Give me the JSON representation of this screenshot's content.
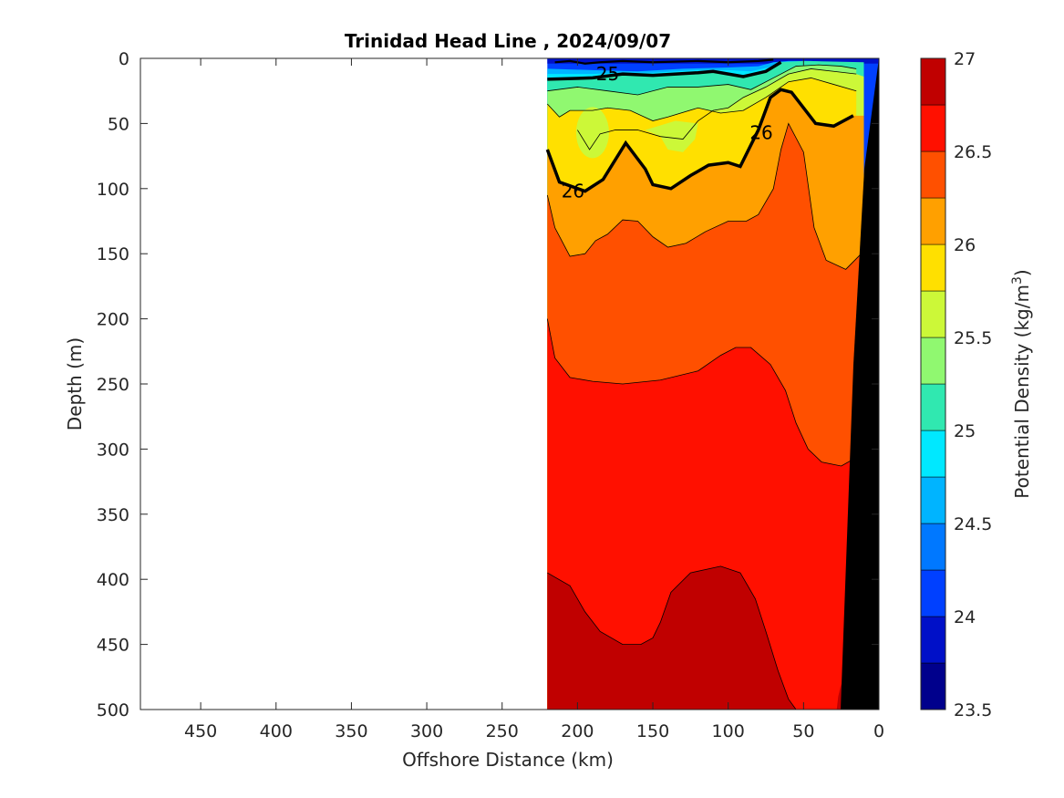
{
  "chart_data": {
    "type": "contour",
    "title": "Trinidad Head Line , 2024/09/07",
    "xlabel": "Offshore Distance (km)",
    "ylabel": "Depth (m)",
    "xlim": [
      490,
      0
    ],
    "ylim": [
      500,
      0
    ],
    "x_reversed": true,
    "y_reversed": true,
    "xticks": [
      "450",
      "400",
      "350",
      "300",
      "250",
      "200",
      "150",
      "100",
      "50",
      "0"
    ],
    "xtick_values": [
      450,
      400,
      350,
      300,
      250,
      200,
      150,
      100,
      50,
      0
    ],
    "yticks": [
      "0",
      "50",
      "100",
      "150",
      "200",
      "250",
      "300",
      "350",
      "400",
      "450",
      "500"
    ],
    "ytick_values": [
      0,
      50,
      100,
      150,
      200,
      250,
      300,
      350,
      400,
      450,
      500
    ],
    "colorbar": {
      "label_main": "Potential Density (kg/m",
      "label_sup": "3",
      "label_end": ")",
      "ticks": [
        "27",
        "26.5",
        "26",
        "25.5",
        "25",
        "24.5",
        "24",
        "23.5"
      ],
      "tick_values": [
        27,
        26.5,
        26,
        25.5,
        25,
        24.5,
        24,
        23.5
      ],
      "levels": [
        23.5,
        23.75,
        24,
        24.25,
        24.5,
        24.75,
        25,
        25.25,
        25.5,
        25.75,
        26,
        26.25,
        26.5,
        26.75,
        27
      ],
      "colors": [
        "#00008c",
        "#0010c8",
        "#0040ff",
        "#0078ff",
        "#00b4ff",
        "#00e8ff",
        "#30e8b0",
        "#90f870",
        "#ccf838",
        "#ffe000",
        "#ffa000",
        "#ff5000",
        "#ff1000",
        "#c00000"
      ]
    },
    "data_extent_km": [
      0,
      220
    ],
    "isopycnal_labels": [
      {
        "text": "25",
        "x_km": 180,
        "depth_m": 12
      },
      {
        "text": "26",
        "x_km": 78,
        "depth_m": 57
      },
      {
        "text": "26",
        "x_km": 203,
        "depth_m": 102
      }
    ],
    "isopycnal_26_depth_m": [
      [
        220,
        70
      ],
      [
        212,
        95
      ],
      [
        195,
        102
      ],
      [
        183,
        93
      ],
      [
        168,
        65
      ],
      [
        155,
        85
      ],
      [
        150,
        97
      ],
      [
        138,
        100
      ],
      [
        125,
        90
      ],
      [
        113,
        82
      ],
      [
        100,
        80
      ],
      [
        92,
        83
      ],
      [
        80,
        55
      ],
      [
        72,
        30
      ],
      [
        65,
        24
      ],
      [
        58,
        26
      ],
      [
        42,
        50
      ],
      [
        30,
        52
      ],
      [
        17,
        44
      ]
    ],
    "isopycnal_25_depth_m": [
      [
        220,
        16
      ],
      [
        190,
        15
      ],
      [
        170,
        12
      ],
      [
        150,
        13
      ],
      [
        120,
        11
      ],
      [
        110,
        10
      ],
      [
        90,
        14
      ],
      [
        75,
        10
      ],
      [
        65,
        3
      ]
    ],
    "sigma_26_75_depth_m": [
      [
        220,
        395
      ],
      [
        205,
        405
      ],
      [
        195,
        425
      ],
      [
        185,
        440
      ],
      [
        170,
        450
      ],
      [
        158,
        450
      ],
      [
        150,
        445
      ],
      [
        145,
        433
      ],
      [
        138,
        410
      ],
      [
        125,
        395
      ],
      [
        105,
        390
      ],
      [
        92,
        395
      ],
      [
        82,
        415
      ],
      [
        75,
        440
      ],
      [
        67,
        470
      ],
      [
        60,
        492
      ],
      [
        55,
        500
      ]
    ],
    "sigma_26_5_depth_m": [
      [
        220,
        200
      ],
      [
        215,
        230
      ],
      [
        205,
        245
      ],
      [
        190,
        248
      ],
      [
        170,
        250
      ],
      [
        145,
        247
      ],
      [
        120,
        240
      ],
      [
        105,
        228
      ],
      [
        95,
        222
      ],
      [
        85,
        222
      ],
      [
        72,
        235
      ],
      [
        62,
        255
      ],
      [
        55,
        280
      ],
      [
        47,
        300
      ],
      [
        38,
        310
      ],
      [
        25,
        313
      ],
      [
        5,
        300
      ]
    ],
    "sigma_26_25_depth_m": [
      [
        220,
        105
      ],
      [
        215,
        130
      ],
      [
        205,
        152
      ],
      [
        195,
        150
      ],
      [
        188,
        140
      ],
      [
        180,
        135
      ],
      [
        170,
        124
      ],
      [
        160,
        125
      ],
      [
        150,
        137
      ],
      [
        140,
        145
      ],
      [
        128,
        142
      ],
      [
        115,
        133
      ],
      [
        100,
        125
      ],
      [
        88,
        125
      ],
      [
        80,
        120
      ],
      [
        70,
        100
      ],
      [
        65,
        70
      ],
      [
        60,
        50
      ],
      [
        50,
        72
      ],
      [
        43,
        130
      ],
      [
        35,
        155
      ],
      [
        22,
        162
      ],
      [
        10,
        148
      ]
    ],
    "sigma_25_75_depth_m": [
      [
        220,
        35
      ],
      [
        212,
        45
      ],
      [
        205,
        40
      ],
      [
        190,
        40
      ],
      [
        180,
        38
      ],
      [
        165,
        40
      ],
      [
        150,
        48
      ],
      [
        140,
        45
      ],
      [
        120,
        38
      ],
      [
        105,
        42
      ],
      [
        90,
        40
      ],
      [
        75,
        30
      ],
      [
        60,
        18
      ],
      [
        45,
        15
      ],
      [
        30,
        20
      ],
      [
        15,
        25
      ]
    ],
    "sigma_25_5_depth_m": [
      [
        200,
        55
      ],
      [
        192,
        70
      ],
      [
        185,
        58
      ],
      [
        175,
        55
      ],
      [
        160,
        55
      ],
      [
        145,
        60
      ],
      [
        130,
        62
      ],
      [
        120,
        48
      ],
      [
        110,
        40
      ],
      [
        100,
        38
      ],
      [
        90,
        30
      ],
      [
        75,
        22
      ],
      [
        60,
        12
      ],
      [
        45,
        8
      ],
      [
        30,
        10
      ],
      [
        15,
        12
      ]
    ],
    "sigma_25_25_depth_m": [
      [
        220,
        25
      ],
      [
        200,
        22
      ],
      [
        180,
        25
      ],
      [
        160,
        28
      ],
      [
        140,
        22
      ],
      [
        120,
        22
      ],
      [
        100,
        20
      ],
      [
        85,
        24
      ],
      [
        70,
        15
      ],
      [
        55,
        6
      ],
      [
        40,
        5
      ],
      [
        25,
        6
      ],
      [
        15,
        8
      ]
    ]
  }
}
